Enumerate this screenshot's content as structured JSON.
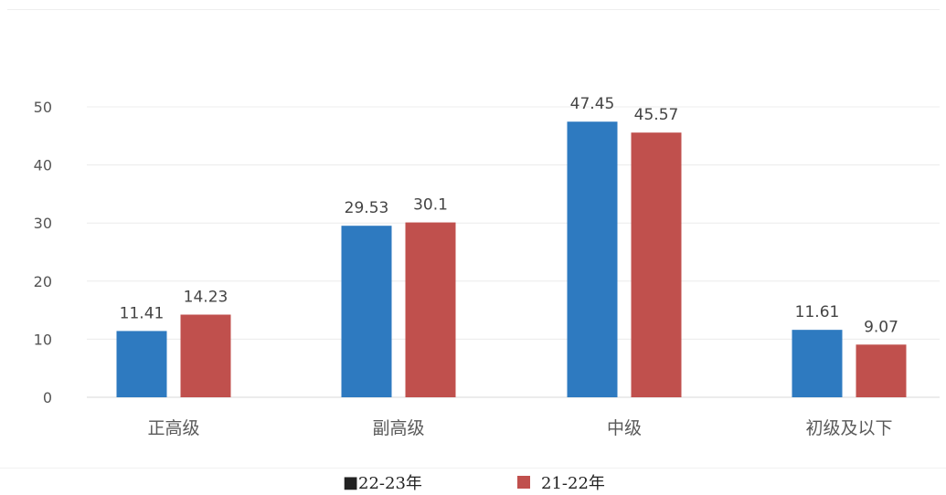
{
  "chart_data": {
    "type": "bar",
    "categories": [
      "正高级",
      "副高级",
      "中级",
      "初级及以下"
    ],
    "series": [
      {
        "name": "22-23年",
        "values": [
          11.41,
          29.53,
          47.45,
          11.61
        ],
        "color": "#2e7ac0"
      },
      {
        "name": "21-22年",
        "values": [
          14.23,
          30.1,
          45.57,
          9.07
        ],
        "color": "#c0504d"
      }
    ],
    "data_labels": [
      [
        "11.41",
        "29.53",
        "47.45",
        "11.61"
      ],
      [
        "14.23",
        "30.1",
        "45.57",
        "9.07"
      ]
    ],
    "ylim": [
      0,
      50
    ],
    "yticks": [
      "0",
      "10",
      "20",
      "30",
      "40",
      "50"
    ],
    "grid": true,
    "legend_position": "bottom-center",
    "legend_markers": [
      "■",
      "■"
    ]
  }
}
